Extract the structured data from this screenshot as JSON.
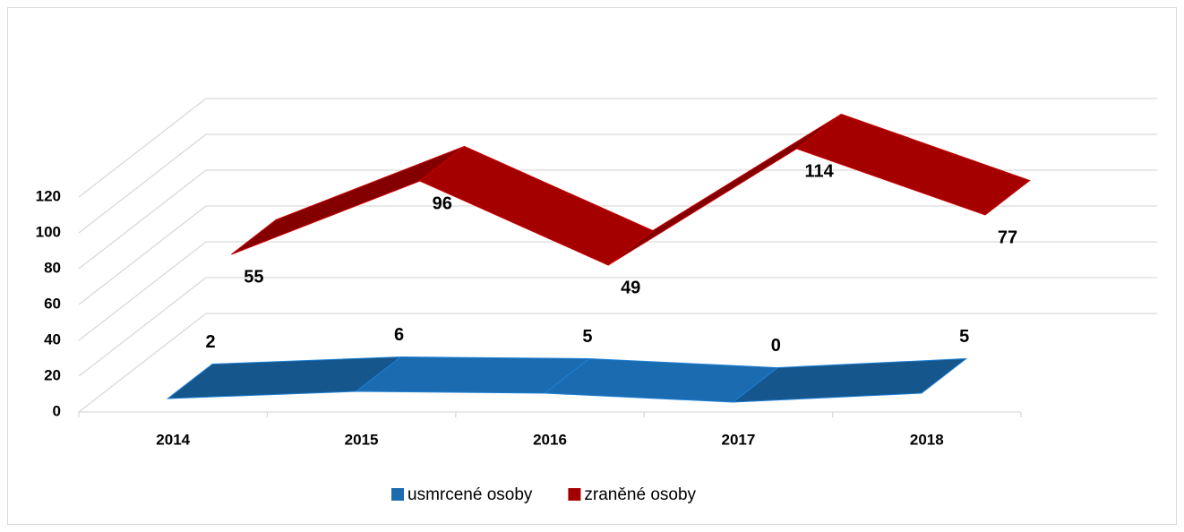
{
  "chart_data": {
    "type": "line3d",
    "categories": [
      "2014",
      "2015",
      "2016",
      "2017",
      "2018"
    ],
    "series": [
      {
        "name": "usmrcené osoby",
        "color": "#1a6bb0",
        "values": [
          2,
          6,
          5,
          0,
          5
        ]
      },
      {
        "name": "zraněné osoby",
        "color": "#a50000",
        "values": [
          55,
          96,
          49,
          114,
          77
        ]
      }
    ],
    "ylim": [
      0,
      120
    ],
    "yticks": [
      0,
      20,
      40,
      60,
      80,
      100,
      120
    ],
    "grid": true,
    "legend": "bottom"
  }
}
